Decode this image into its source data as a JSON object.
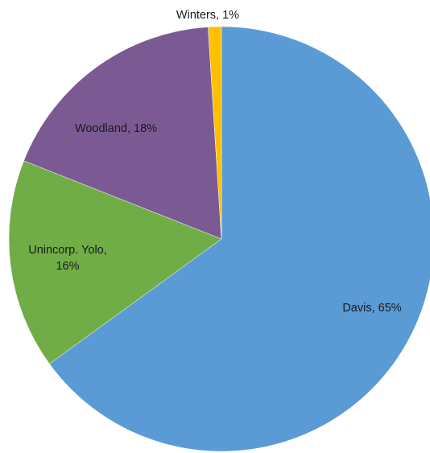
{
  "chart_data": {
    "type": "pie",
    "title": "",
    "start": "12 o'clock",
    "direction": "clockwise",
    "slices": [
      {
        "label": "Davis",
        "value": 65,
        "color": "#5b9bd5",
        "label_lines": [
          "Davis, 65%"
        ]
      },
      {
        "label": "Unincorp. Yolo",
        "value": 16,
        "color": "#70ad47",
        "label_lines": [
          "Unincorp. Yolo,",
          "16%"
        ]
      },
      {
        "label": "Woodland",
        "value": 18,
        "color": "#7b5a94",
        "label_lines": [
          "Woodland, 18%"
        ]
      },
      {
        "label": "Winters",
        "value": 1,
        "color": "#ffc000",
        "label_lines": [
          "Winters, 1%"
        ]
      }
    ]
  }
}
